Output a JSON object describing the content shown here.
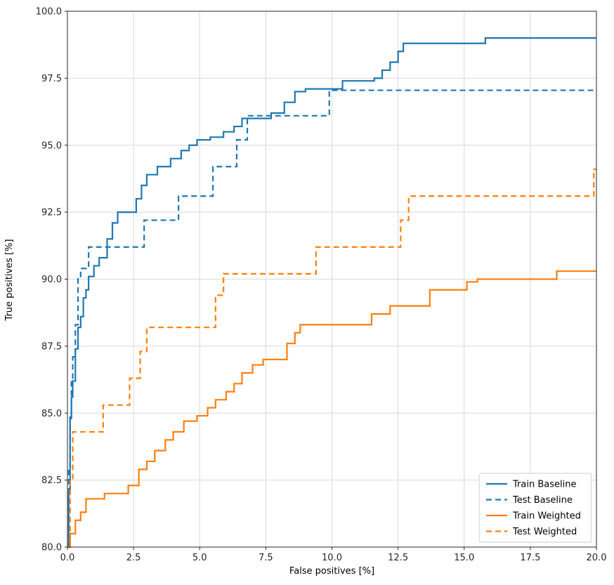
{
  "chart_data": {
    "type": "line",
    "subtype": "step-roc",
    "title": "",
    "xlabel": "False positives [%]",
    "ylabel": "True positives [%]",
    "xlim": [
      0,
      20
    ],
    "ylim": [
      80,
      100
    ],
    "xticks": [
      0.0,
      2.5,
      5.0,
      7.5,
      10.0,
      12.5,
      15.0,
      17.5,
      20.0
    ],
    "yticks": [
      80.0,
      82.5,
      85.0,
      87.5,
      90.0,
      92.5,
      95.0,
      97.5,
      100.0
    ],
    "grid": true,
    "legend_position": "lower right",
    "colors": {
      "baseline": "#1f77b4",
      "weighted": "#ff7f0e"
    },
    "series": [
      {
        "name": "Train Baseline",
        "color": "#1f77b4",
        "dash": "solid",
        "points": [
          [
            0,
            80
          ],
          [
            0.05,
            82.0
          ],
          [
            0.1,
            84.8
          ],
          [
            0.15,
            85.6
          ],
          [
            0.2,
            86.2
          ],
          [
            0.3,
            87.4
          ],
          [
            0.4,
            88.2
          ],
          [
            0.5,
            88.6
          ],
          [
            0.6,
            89.3
          ],
          [
            0.7,
            89.6
          ],
          [
            0.8,
            90.1
          ],
          [
            1.0,
            90.5
          ],
          [
            1.2,
            90.8
          ],
          [
            1.5,
            91.5
          ],
          [
            1.7,
            92.1
          ],
          [
            1.9,
            92.5
          ],
          [
            2.6,
            93.0
          ],
          [
            2.8,
            93.5
          ],
          [
            3.0,
            93.9
          ],
          [
            3.4,
            94.2
          ],
          [
            3.9,
            94.5
          ],
          [
            4.3,
            94.8
          ],
          [
            4.6,
            95.0
          ],
          [
            4.9,
            95.2
          ],
          [
            5.4,
            95.3
          ],
          [
            5.9,
            95.5
          ],
          [
            6.3,
            95.7
          ],
          [
            6.6,
            96.0
          ],
          [
            7.7,
            96.2
          ],
          [
            8.2,
            96.6
          ],
          [
            8.6,
            97.0
          ],
          [
            9.0,
            97.1
          ],
          [
            10.4,
            97.4
          ],
          [
            11.6,
            97.5
          ],
          [
            11.9,
            97.8
          ],
          [
            12.2,
            98.1
          ],
          [
            12.5,
            98.5
          ],
          [
            12.7,
            98.8
          ],
          [
            15.8,
            99.0
          ],
          [
            20,
            99.0
          ]
        ]
      },
      {
        "name": "Test Baseline",
        "color": "#1f77b4",
        "dash": "dashed",
        "points": [
          [
            0,
            80
          ],
          [
            0.05,
            83.0
          ],
          [
            0.1,
            85.0
          ],
          [
            0.15,
            86.2
          ],
          [
            0.2,
            87.1
          ],
          [
            0.3,
            88.3
          ],
          [
            0.4,
            90.1
          ],
          [
            0.5,
            90.4
          ],
          [
            0.8,
            91.2
          ],
          [
            2.9,
            92.2
          ],
          [
            4.2,
            93.1
          ],
          [
            5.5,
            94.2
          ],
          [
            6.4,
            95.2
          ],
          [
            6.8,
            96.1
          ],
          [
            9.9,
            97.05
          ],
          [
            20,
            97.05
          ]
        ]
      },
      {
        "name": "Train Weighted",
        "color": "#ff7f0e",
        "dash": "solid",
        "points": [
          [
            0,
            80
          ],
          [
            0.1,
            80.5
          ],
          [
            0.3,
            81.0
          ],
          [
            0.5,
            81.3
          ],
          [
            0.7,
            81.8
          ],
          [
            1.4,
            82.0
          ],
          [
            2.3,
            82.3
          ],
          [
            2.7,
            82.9
          ],
          [
            3.0,
            83.2
          ],
          [
            3.3,
            83.6
          ],
          [
            3.7,
            84.0
          ],
          [
            4.0,
            84.3
          ],
          [
            4.4,
            84.7
          ],
          [
            4.9,
            84.9
          ],
          [
            5.3,
            85.2
          ],
          [
            5.6,
            85.5
          ],
          [
            6.0,
            85.8
          ],
          [
            6.3,
            86.1
          ],
          [
            6.6,
            86.5
          ],
          [
            7.0,
            86.8
          ],
          [
            7.4,
            87.0
          ],
          [
            8.3,
            87.6
          ],
          [
            8.6,
            88.0
          ],
          [
            8.8,
            88.3
          ],
          [
            11.5,
            88.7
          ],
          [
            12.2,
            89.0
          ],
          [
            13.7,
            89.6
          ],
          [
            15.1,
            89.9
          ],
          [
            15.5,
            90.0
          ],
          [
            18.5,
            90.3
          ],
          [
            20,
            90.3
          ]
        ]
      },
      {
        "name": "Test Weighted",
        "color": "#ff7f0e",
        "dash": "dashed",
        "points": [
          [
            0,
            80
          ],
          [
            0.1,
            82.5
          ],
          [
            0.2,
            84.3
          ],
          [
            1.35,
            85.3
          ],
          [
            2.35,
            86.3
          ],
          [
            2.75,
            87.3
          ],
          [
            3.0,
            88.2
          ],
          [
            5.6,
            89.4
          ],
          [
            5.9,
            90.2
          ],
          [
            9.4,
            91.2
          ],
          [
            12.6,
            92.2
          ],
          [
            12.9,
            93.1
          ],
          [
            19.9,
            94.1
          ],
          [
            20,
            94.1
          ]
        ]
      }
    ],
    "legend_labels": [
      "Train Baseline",
      "Test Baseline",
      "Train Weighted",
      "Test Weighted"
    ]
  }
}
